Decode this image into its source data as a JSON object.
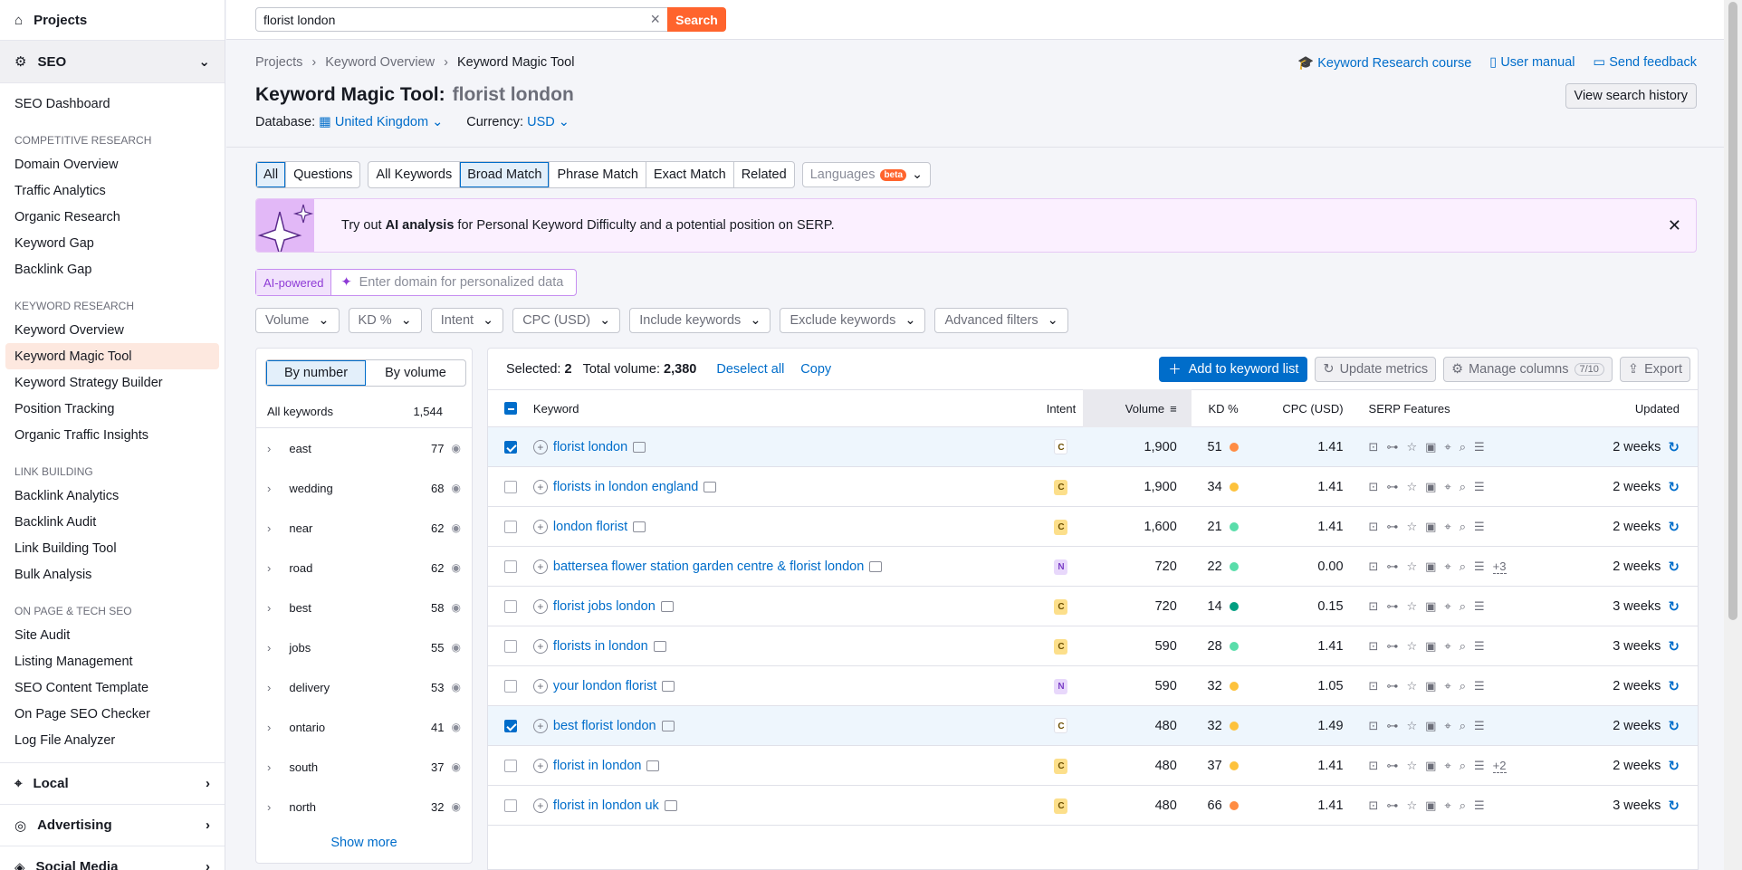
{
  "sidebar": {
    "projects": "Projects",
    "seo": "SEO",
    "dashboard": "SEO Dashboard",
    "sections": [
      {
        "title": "COMPETITIVE RESEARCH",
        "items": [
          "Domain Overview",
          "Traffic Analytics",
          "Organic Research",
          "Keyword Gap",
          "Backlink Gap"
        ]
      },
      {
        "title": "KEYWORD RESEARCH",
        "items": [
          "Keyword Overview",
          "Keyword Magic Tool",
          "Keyword Strategy Builder",
          "Position Tracking",
          "Organic Traffic Insights"
        ]
      },
      {
        "title": "LINK BUILDING",
        "items": [
          "Backlink Analytics",
          "Backlink Audit",
          "Link Building Tool",
          "Bulk Analysis"
        ]
      },
      {
        "title": "ON PAGE & TECH SEO",
        "items": [
          "Site Audit",
          "Listing Management",
          "SEO Content Template",
          "On Page SEO Checker",
          "Log File Analyzer"
        ]
      }
    ],
    "groups": [
      "Local",
      "Advertising",
      "Social Media"
    ]
  },
  "search": {
    "value": "florist london",
    "button": "Search"
  },
  "breadcrumb": [
    "Projects",
    "Keyword Overview",
    "Keyword Magic Tool"
  ],
  "title": {
    "label": "Keyword Magic Tool:",
    "keyword": "florist london"
  },
  "database": {
    "label": "Database:",
    "value": "United Kingdom",
    "currency_label": "Currency:",
    "currency": "USD"
  },
  "top_links": [
    "Keyword Research course",
    "User manual",
    "Send feedback"
  ],
  "view_history": "View search history",
  "tabs": {
    "group1": [
      "All",
      "Questions"
    ],
    "group2": [
      "All Keywords",
      "Broad Match",
      "Phrase Match",
      "Exact Match",
      "Related"
    ],
    "languages": "Languages",
    "beta": "beta"
  },
  "banner": {
    "pre": "Try out ",
    "bold": "AI analysis",
    "post": " for Personal Keyword Difficulty and a potential position on SERP."
  },
  "ai": {
    "label": "AI-powered",
    "placeholder": "Enter domain for personalized data"
  },
  "filters": [
    "Volume",
    "KD %",
    "Intent",
    "CPC (USD)",
    "Include keywords",
    "Exclude keywords",
    "Advanced filters"
  ],
  "left_panel": {
    "toggle": [
      "By number",
      "By volume"
    ],
    "all_label": "All keywords",
    "all_count": "1,544",
    "items": [
      {
        "name": "east",
        "count": "77"
      },
      {
        "name": "wedding",
        "count": "68"
      },
      {
        "name": "near",
        "count": "62"
      },
      {
        "name": "road",
        "count": "62"
      },
      {
        "name": "best",
        "count": "58"
      },
      {
        "name": "jobs",
        "count": "55"
      },
      {
        "name": "delivery",
        "count": "53"
      },
      {
        "name": "ontario",
        "count": "41"
      },
      {
        "name": "south",
        "count": "37"
      },
      {
        "name": "north",
        "count": "32"
      }
    ],
    "show_more": "Show more"
  },
  "table_bar": {
    "selected_label": "Selected:",
    "selected": "2",
    "total_label": "Total volume:",
    "total": "2,380",
    "deselect": "Deselect all",
    "copy": "Copy",
    "add": "Add to keyword list",
    "update": "Update metrics",
    "manage": "Manage columns",
    "manage_count": "7/10",
    "export": "Export"
  },
  "columns": [
    "Keyword",
    "Intent",
    "Volume",
    "KD %",
    "CPC (USD)",
    "SERP Features",
    "Updated"
  ],
  "colors": {
    "kd_orange": "#ff8c43",
    "kd_yellow": "#fdc23c",
    "kd_green": "#59ddaa",
    "kd_dark_green": "#009f81"
  },
  "rows": [
    {
      "keyword": "florist london",
      "intent": "C",
      "volume": "1,900",
      "kd": "51",
      "kd_color": "#ff8c43",
      "cpc": "1.41",
      "serp_more": "",
      "updated": "2 weeks",
      "selected": true
    },
    {
      "keyword": "florists in london england",
      "intent": "C",
      "volume": "1,900",
      "kd": "34",
      "kd_color": "#fdc23c",
      "cpc": "1.41",
      "serp_more": "",
      "updated": "2 weeks",
      "selected": false
    },
    {
      "keyword": "london florist",
      "intent": "C",
      "volume": "1,600",
      "kd": "21",
      "kd_color": "#59ddaa",
      "cpc": "1.41",
      "serp_more": "",
      "updated": "2 weeks",
      "selected": false
    },
    {
      "keyword": "battersea flower station garden centre & florist london",
      "intent": "N",
      "volume": "720",
      "kd": "22",
      "kd_color": "#59ddaa",
      "cpc": "0.00",
      "serp_more": "+3",
      "updated": "2 weeks",
      "selected": false
    },
    {
      "keyword": "florist jobs london",
      "intent": "C",
      "volume": "720",
      "kd": "14",
      "kd_color": "#009f81",
      "cpc": "0.15",
      "serp_more": "",
      "updated": "3 weeks",
      "selected": false
    },
    {
      "keyword": "florists in london",
      "intent": "C",
      "volume": "590",
      "kd": "28",
      "kd_color": "#59ddaa",
      "cpc": "1.41",
      "serp_more": "",
      "updated": "3 weeks",
      "selected": false
    },
    {
      "keyword": "your london florist",
      "intent": "N",
      "volume": "590",
      "kd": "32",
      "kd_color": "#fdc23c",
      "cpc": "1.05",
      "serp_more": "",
      "updated": "2 weeks",
      "selected": false
    },
    {
      "keyword": "best florist london",
      "intent": "C",
      "volume": "480",
      "kd": "32",
      "kd_color": "#fdc23c",
      "cpc": "1.49",
      "serp_more": "",
      "updated": "2 weeks",
      "selected": true
    },
    {
      "keyword": "florist in london",
      "intent": "C",
      "volume": "480",
      "kd": "37",
      "kd_color": "#fdc23c",
      "cpc": "1.41",
      "serp_more": "+2",
      "updated": "2 weeks",
      "selected": false
    },
    {
      "keyword": "florist in london uk",
      "intent": "C",
      "volume": "480",
      "kd": "66",
      "kd_color": "#ff8c43",
      "cpc": "1.41",
      "serp_more": "",
      "updated": "3 weeks",
      "selected": false
    }
  ]
}
